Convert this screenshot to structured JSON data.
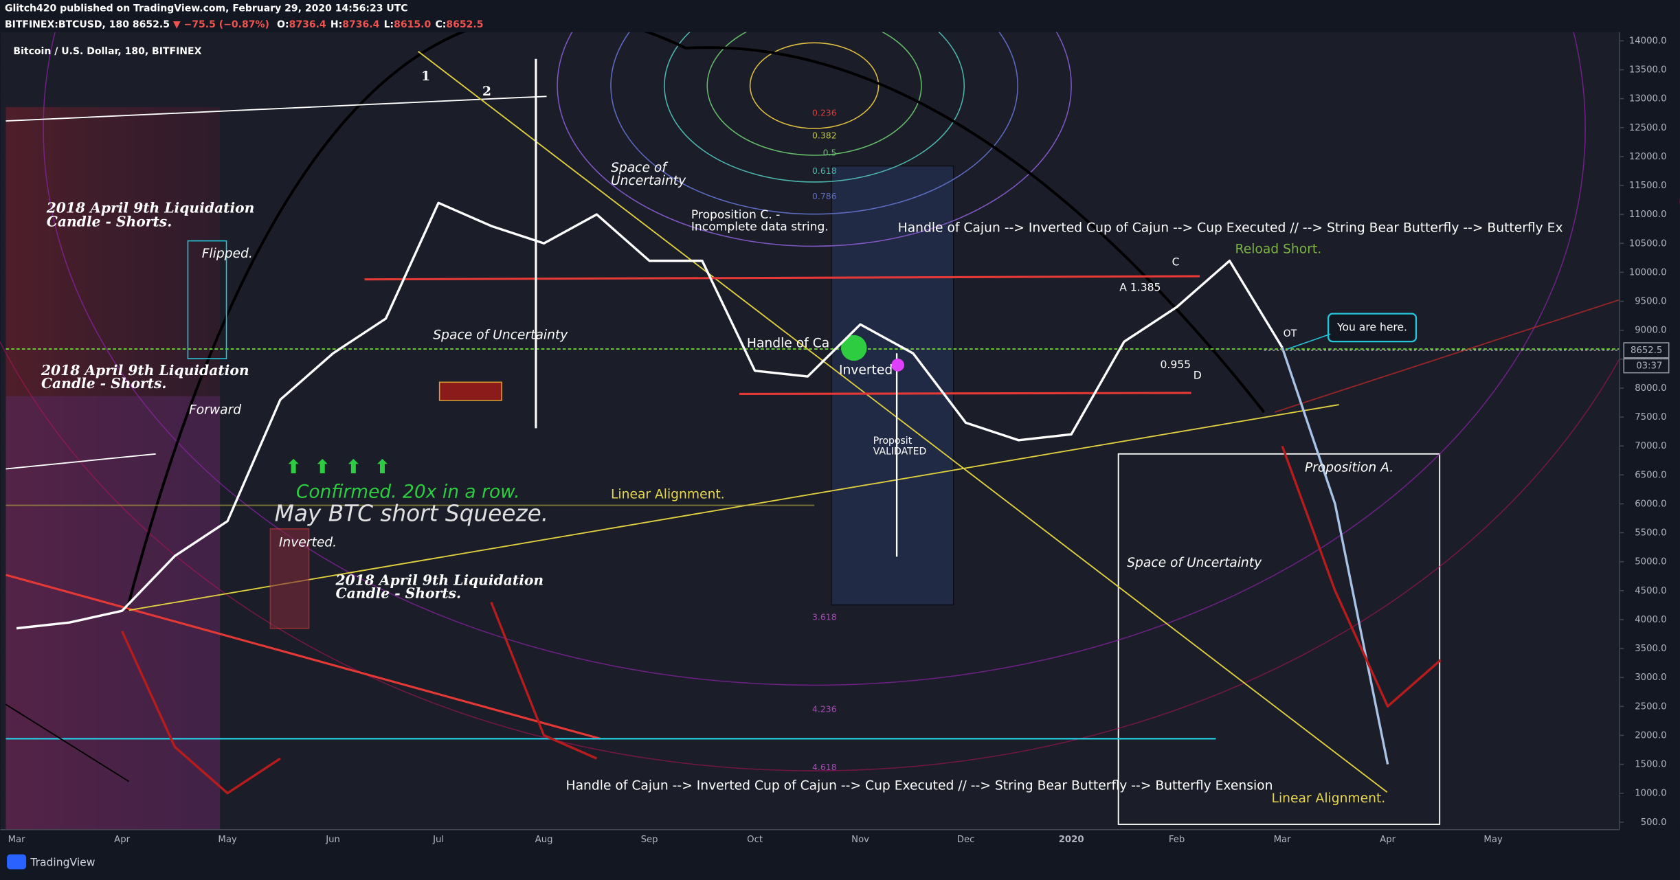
{
  "header": {
    "publisher": "Glitch420 published on TradingView.com, February 29, 2020 14:56:23 UTC",
    "symbol": "BITFINEX:BTCUSD, 180",
    "last": "8652.5",
    "change": "▼ −75.5 (−0.87%)",
    "ohlc": [
      {
        "key": "O:",
        "value": "8736.4"
      },
      {
        "key": "H:",
        "value": "8736.4"
      },
      {
        "key": "L:",
        "value": "8615.0"
      },
      {
        "key": "C:",
        "value": "8652.5"
      }
    ]
  },
  "footer": {
    "brand": "TradingView"
  },
  "chart_data": {
    "type": "line",
    "title": "Bitcoin / U.S. Dollar, 180, BITFINEX",
    "categories": [
      "Mar",
      null,
      "Apr",
      null,
      "May",
      null,
      "Jun",
      null,
      "Jul",
      null,
      "Aug",
      null,
      "Sep",
      null,
      "Oct",
      null,
      "Nov",
      null,
      "Dec",
      null,
      "2020",
      null,
      "Feb",
      null,
      "Mar",
      null,
      "Apr",
      null,
      "May",
      null,
      null
    ],
    "series": [
      {
        "color": "#ffffff",
        "values": [
          3850,
          3950,
          4150,
          5100,
          5700,
          7800,
          8600,
          9200,
          11200,
          10800,
          10500,
          11000,
          10200,
          10200,
          8300,
          8200,
          9100,
          8600,
          7400,
          7100,
          7200,
          8800,
          9400,
          10200,
          8700,
          null,
          null,
          null,
          null,
          null,
          null
        ]
      },
      {
        "color": "#a9c3e6",
        "values": [
          null,
          null,
          null,
          null,
          null,
          null,
          null,
          null,
          null,
          null,
          null,
          null,
          null,
          null,
          null,
          null,
          null,
          null,
          null,
          null,
          null,
          null,
          null,
          null,
          8700,
          6000,
          1500,
          null,
          null,
          null,
          null
        ]
      },
      {
        "color": "#b71c1c",
        "values": [
          null,
          null,
          3800,
          1800,
          1000,
          1600,
          null,
          null,
          null,
          4300,
          2000,
          1600,
          null,
          null,
          null,
          null,
          null,
          null,
          null,
          null,
          null,
          null,
          null,
          null,
          7000,
          4500,
          2500,
          3300,
          null,
          null,
          null
        ]
      }
    ],
    "ylim": [
      370,
      14150
    ],
    "yticks": [
      {
        "value": 500,
        "label": "500.0"
      },
      {
        "value": 1000,
        "label": "1000.0"
      },
      {
        "value": 1500,
        "label": "1500.0"
      },
      {
        "value": 2000,
        "label": "2000.0"
      },
      {
        "value": 2500,
        "label": "2500.0"
      },
      {
        "value": 3000,
        "label": "3000.0"
      },
      {
        "value": 3500,
        "label": "3500.0"
      },
      {
        "value": 4000,
        "label": "4000.0"
      },
      {
        "value": 4500,
        "label": "4500.0"
      },
      {
        "value": 5000,
        "label": "5000.0"
      },
      {
        "value": 5500,
        "label": "5500.0"
      },
      {
        "value": 6000,
        "label": "6000.0"
      },
      {
        "value": 6500,
        "label": "6500.0"
      },
      {
        "value": 7000,
        "label": "7000.0"
      },
      {
        "value": 7500,
        "label": "7500.0"
      },
      {
        "value": 8000,
        "label": "8000.0"
      },
      {
        "value": 8500,
        "label": "8500.0"
      },
      {
        "value": 9000,
        "label": "9000.0"
      },
      {
        "value": 9500,
        "label": "9500.0"
      },
      {
        "value": 10000,
        "label": "10000.0"
      },
      {
        "value": 10500,
        "label": "10500.0"
      },
      {
        "value": 11000,
        "label": "11000.0"
      },
      {
        "value": 11500,
        "label": "11500.0"
      },
      {
        "value": 12000,
        "label": "12000.0"
      },
      {
        "value": 12500,
        "label": "12500.0"
      },
      {
        "value": 13000,
        "label": "13000.0"
      },
      {
        "value": 13500,
        "label": "13500.0"
      },
      {
        "value": 14000,
        "label": "14000.0"
      }
    ],
    "price_line": {
      "value": 8652.5,
      "label": "8652.5",
      "countdown": "03:37"
    },
    "annotations": [
      "1",
      "2",
      "2018 April 9th Liquidation",
      "Candle - Shorts.",
      "Flipped.",
      "2018 April 9th Liquidation",
      "Candle - Shorts.",
      "Forward",
      "Inverted.",
      "2018 April 9th Liquidation",
      "Candle - Shorts.",
      "Confirmed. 20x in a row.",
      "May BTC short Squeeze.",
      "Space of Uncertainty",
      "Space of",
      "Uncertainty",
      "Proposition C. -",
      "Incomplete data string.",
      "Linear Alignment.",
      "Handle of Cajun --> Inverted Cup of Cajun --> Cup Executed // --> String Bear Butterfly --> Butterfly Ex",
      "Reload Short.",
      "You are here.",
      "OT",
      "Proposition A.",
      "Space of Uncertainty",
      "Handle of Cajun --> Inverted Cup of Cajun --> Cup Executed // --> String Bear Butterfly --> Butterfly Exension",
      "Linear Alignment.",
      "Handle of Ca",
      "Inverted",
      "A 1.385",
      "0.955",
      "C",
      "D",
      "0.236",
      "0.382",
      "0.5",
      "0.618",
      "0.786",
      "3.618",
      "4.236",
      "4.618",
      "Proposit",
      "VALIDATED"
    ]
  }
}
